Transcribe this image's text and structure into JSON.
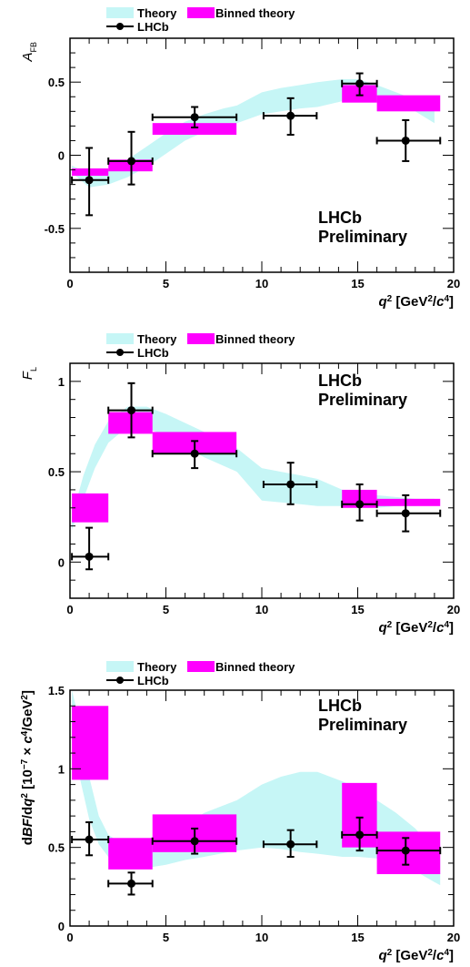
{
  "chart_data": [
    {
      "type": "line",
      "ylabel": "A",
      "ylabel_sub": "FB",
      "xlabel_parts": [
        "q",
        "2",
        " [GeV",
        "2",
        "/",
        "c",
        "4",
        "]"
      ],
      "legend": {
        "theory": "Theory",
        "binned": "Binned theory",
        "data": "LHCb"
      },
      "watermark": [
        "LHCb",
        "Preliminary"
      ],
      "xlim": [
        0,
        20
      ],
      "ylim": [
        -0.8,
        0.8
      ],
      "x_ticks": [
        0,
        5,
        10,
        15,
        20
      ],
      "x_tick_labels": [
        "0",
        "5",
        "10",
        "15",
        "20"
      ],
      "y_ticks": [
        -0.5,
        0,
        0.5
      ],
      "y_tick_labels": [
        "-0.5",
        "0",
        "0.5"
      ],
      "colors": {
        "theory": "#c6f6f6",
        "binned": "#ff00ff",
        "data": "#000000"
      },
      "theory_band": [
        {
          "x": 0.1,
          "lo": -0.12,
          "hi": -0.07
        },
        {
          "x": 1,
          "lo": -0.22,
          "hi": -0.13
        },
        {
          "x": 2,
          "lo": -0.2,
          "hi": -0.1
        },
        {
          "x": 3,
          "lo": -0.15,
          "hi": -0.03
        },
        {
          "x": 4,
          "lo": -0.08,
          "hi": 0.06
        },
        {
          "x": 5,
          "lo": 0.01,
          "hi": 0.15
        },
        {
          "x": 6,
          "lo": 0.1,
          "hi": 0.23
        },
        {
          "x": 7,
          "lo": 0.16,
          "hi": 0.28
        },
        {
          "x": 8,
          "lo": 0.2,
          "hi": 0.32
        },
        {
          "x": 8.7,
          "lo": 0.22,
          "hi": 0.34
        },
        {
          "x": 10,
          "lo": 0.28,
          "hi": 0.43
        },
        {
          "x": 11,
          "lo": 0.3,
          "hi": 0.46
        },
        {
          "x": 12,
          "lo": 0.32,
          "hi": 0.48
        },
        {
          "x": 12.9,
          "lo": 0.33,
          "hi": 0.5
        },
        {
          "x": 14.2,
          "lo": 0.37,
          "hi": 0.52
        },
        {
          "x": 15,
          "lo": 0.38,
          "hi": 0.52
        },
        {
          "x": 16,
          "lo": 0.37,
          "hi": 0.48
        },
        {
          "x": 17,
          "lo": 0.34,
          "hi": 0.43
        },
        {
          "x": 18,
          "lo": 0.3,
          "hi": 0.38
        },
        {
          "x": 19,
          "lo": 0.22,
          "hi": 0.3
        }
      ],
      "binned": [
        {
          "x0": 0.1,
          "x1": 2,
          "lo": -0.14,
          "hi": -0.09
        },
        {
          "x0": 2,
          "x1": 4.3,
          "lo": -0.11,
          "hi": -0.03
        },
        {
          "x0": 4.3,
          "x1": 8.68,
          "lo": 0.14,
          "hi": 0.22
        },
        {
          "x0": 14.18,
          "x1": 16,
          "lo": 0.36,
          "hi": 0.48
        },
        {
          "x0": 16,
          "x1": 19.3,
          "lo": 0.3,
          "hi": 0.41
        }
      ],
      "points": [
        {
          "x": 1.0,
          "xerr": [
            0.1,
            2
          ],
          "y": -0.17,
          "ylo": -0.41,
          "yhi": 0.05
        },
        {
          "x": 3.2,
          "xerr": [
            2,
            4.3
          ],
          "y": -0.04,
          "ylo": -0.2,
          "yhi": 0.16
        },
        {
          "x": 6.5,
          "xerr": [
            4.3,
            8.68
          ],
          "y": 0.26,
          "ylo": 0.19,
          "yhi": 0.33
        },
        {
          "x": 11.5,
          "xerr": [
            10.09,
            12.86
          ],
          "y": 0.27,
          "ylo": 0.14,
          "yhi": 0.39
        },
        {
          "x": 15.1,
          "xerr": [
            14.18,
            16
          ],
          "y": 0.49,
          "ylo": 0.41,
          "yhi": 0.56
        },
        {
          "x": 17.5,
          "xerr": [
            16,
            19.3
          ],
          "y": 0.1,
          "ylo": -0.04,
          "yhi": 0.24
        }
      ]
    },
    {
      "type": "line",
      "ylabel": "F",
      "ylabel_sub": "L",
      "xlabel_parts": [
        "q",
        "2",
        " [GeV",
        "2",
        "/",
        "c",
        "4",
        "]"
      ],
      "legend": {
        "theory": "Theory",
        "binned": "Binned theory",
        "data": "LHCb"
      },
      "watermark": [
        "LHCb",
        "Preliminary"
      ],
      "xlim": [
        0,
        20
      ],
      "ylim": [
        -0.2,
        1.1
      ],
      "x_ticks": [
        0,
        5,
        10,
        15,
        20
      ],
      "x_tick_labels": [
        "0",
        "5",
        "10",
        "15",
        "20"
      ],
      "y_ticks": [
        0,
        0.5,
        1
      ],
      "y_tick_labels": [
        "0",
        "0.5",
        "1"
      ],
      "colors": {
        "theory": "#c6f6f6",
        "binned": "#ff00ff",
        "data": "#000000"
      },
      "theory_band": [
        {
          "x": 0.1,
          "lo": 0.18,
          "hi": 0.25
        },
        {
          "x": 0.7,
          "lo": 0.35,
          "hi": 0.48
        },
        {
          "x": 1.3,
          "lo": 0.52,
          "hi": 0.65
        },
        {
          "x": 2,
          "lo": 0.66,
          "hi": 0.78
        },
        {
          "x": 3,
          "lo": 0.75,
          "hi": 0.86
        },
        {
          "x": 4,
          "lo": 0.74,
          "hi": 0.86
        },
        {
          "x": 5,
          "lo": 0.7,
          "hi": 0.82
        },
        {
          "x": 6,
          "lo": 0.64,
          "hi": 0.77
        },
        {
          "x": 7,
          "lo": 0.58,
          "hi": 0.72
        },
        {
          "x": 8.7,
          "lo": 0.5,
          "hi": 0.63
        },
        {
          "x": 10,
          "lo": 0.34,
          "hi": 0.52
        },
        {
          "x": 11,
          "lo": 0.33,
          "hi": 0.5
        },
        {
          "x": 12,
          "lo": 0.32,
          "hi": 0.48
        },
        {
          "x": 12.9,
          "lo": 0.31,
          "hi": 0.46
        },
        {
          "x": 14.2,
          "lo": 0.31,
          "hi": 0.4
        },
        {
          "x": 15,
          "lo": 0.3,
          "hi": 0.38
        },
        {
          "x": 16,
          "lo": 0.3,
          "hi": 0.37
        },
        {
          "x": 17,
          "lo": 0.31,
          "hi": 0.36
        },
        {
          "x": 18,
          "lo": 0.31,
          "hi": 0.35
        },
        {
          "x": 19,
          "lo": 0.32,
          "hi": 0.35
        }
      ],
      "binned": [
        {
          "x0": 0.1,
          "x1": 2,
          "lo": 0.22,
          "hi": 0.38
        },
        {
          "x0": 2,
          "x1": 4.3,
          "lo": 0.71,
          "hi": 0.83
        },
        {
          "x0": 4.3,
          "x1": 8.68,
          "lo": 0.6,
          "hi": 0.72
        },
        {
          "x0": 14.18,
          "x1": 16,
          "lo": 0.3,
          "hi": 0.4
        },
        {
          "x0": 16,
          "x1": 19.3,
          "lo": 0.31,
          "hi": 0.35
        }
      ],
      "points": [
        {
          "x": 1.0,
          "xerr": [
            0.1,
            2
          ],
          "y": 0.03,
          "ylo": -0.04,
          "yhi": 0.19
        },
        {
          "x": 3.2,
          "xerr": [
            2,
            4.3
          ],
          "y": 0.84,
          "ylo": 0.69,
          "yhi": 0.99
        },
        {
          "x": 6.5,
          "xerr": [
            4.3,
            8.68
          ],
          "y": 0.6,
          "ylo": 0.52,
          "yhi": 0.67
        },
        {
          "x": 11.5,
          "xerr": [
            10.09,
            12.86
          ],
          "y": 0.43,
          "ylo": 0.32,
          "yhi": 0.55
        },
        {
          "x": 15.1,
          "xerr": [
            14.18,
            16
          ],
          "y": 0.32,
          "ylo": 0.23,
          "yhi": 0.43
        },
        {
          "x": 17.5,
          "xerr": [
            16,
            19.3
          ],
          "y": 0.27,
          "ylo": 0.17,
          "yhi": 0.37
        }
      ]
    },
    {
      "type": "line",
      "ylabel_parts": [
        "d",
        "B",
        "F",
        "/d",
        "q",
        "2",
        " [10",
        "−7",
        " × ",
        "c",
        "4",
        "/GeV",
        "2",
        "]"
      ],
      "xlabel_parts": [
        "q",
        "2",
        " [GeV",
        "2",
        "/",
        "c",
        "4",
        "]"
      ],
      "legend": {
        "theory": "Theory",
        "binned": "Binned theory",
        "data": "LHCb"
      },
      "watermark": [
        "LHCb",
        "Preliminary"
      ],
      "xlim": [
        0,
        20
      ],
      "ylim": [
        0,
        1.5
      ],
      "x_ticks": [
        0,
        5,
        10,
        15,
        20
      ],
      "x_tick_labels": [
        "0",
        "5",
        "10",
        "15",
        "20"
      ],
      "y_ticks": [
        0,
        0.5,
        1,
        1.5
      ],
      "y_tick_labels": [
        "0",
        "0.5",
        "1",
        "1.5"
      ],
      "colors": {
        "theory": "#c6f6f6",
        "binned": "#ff00ff",
        "data": "#000000"
      },
      "theory_band": [
        {
          "x": 0.1,
          "lo": 1.3,
          "hi": 1.5
        },
        {
          "x": 0.5,
          "lo": 0.95,
          "hi": 1.3
        },
        {
          "x": 1,
          "lo": 0.68,
          "hi": 0.95
        },
        {
          "x": 1.5,
          "lo": 0.52,
          "hi": 0.7
        },
        {
          "x": 2,
          "lo": 0.44,
          "hi": 0.58
        },
        {
          "x": 3,
          "lo": 0.37,
          "hi": 0.5
        },
        {
          "x": 4,
          "lo": 0.37,
          "hi": 0.52
        },
        {
          "x": 5,
          "lo": 0.39,
          "hi": 0.58
        },
        {
          "x": 6,
          "lo": 0.42,
          "hi": 0.64
        },
        {
          "x": 7,
          "lo": 0.44,
          "hi": 0.72
        },
        {
          "x": 8.7,
          "lo": 0.48,
          "hi": 0.8
        },
        {
          "x": 10,
          "lo": 0.5,
          "hi": 0.9
        },
        {
          "x": 11,
          "lo": 0.49,
          "hi": 0.95
        },
        {
          "x": 12,
          "lo": 0.47,
          "hi": 0.98
        },
        {
          "x": 12.9,
          "lo": 0.46,
          "hi": 0.98
        },
        {
          "x": 14.2,
          "lo": 0.44,
          "hi": 0.92
        },
        {
          "x": 15,
          "lo": 0.44,
          "hi": 0.88
        },
        {
          "x": 16,
          "lo": 0.43,
          "hi": 0.8
        },
        {
          "x": 17,
          "lo": 0.4,
          "hi": 0.72
        },
        {
          "x": 18,
          "lo": 0.35,
          "hi": 0.62
        },
        {
          "x": 19,
          "lo": 0.28,
          "hi": 0.48
        },
        {
          "x": 19.3,
          "lo": 0.26,
          "hi": 0.42
        }
      ],
      "binned": [
        {
          "x0": 0.1,
          "x1": 2,
          "lo": 0.93,
          "hi": 1.4
        },
        {
          "x0": 2,
          "x1": 4.3,
          "lo": 0.36,
          "hi": 0.56
        },
        {
          "x0": 4.3,
          "x1": 8.68,
          "lo": 0.47,
          "hi": 0.71
        },
        {
          "x0": 14.18,
          "x1": 16,
          "lo": 0.5,
          "hi": 0.91
        },
        {
          "x0": 16,
          "x1": 19.3,
          "lo": 0.33,
          "hi": 0.6
        }
      ],
      "points": [
        {
          "x": 1.0,
          "xerr": [
            0.1,
            2
          ],
          "y": 0.55,
          "ylo": 0.45,
          "yhi": 0.66
        },
        {
          "x": 3.2,
          "xerr": [
            2,
            4.3
          ],
          "y": 0.27,
          "ylo": 0.2,
          "yhi": 0.34
        },
        {
          "x": 6.5,
          "xerr": [
            4.3,
            8.68
          ],
          "y": 0.54,
          "ylo": 0.46,
          "yhi": 0.62
        },
        {
          "x": 11.5,
          "xerr": [
            10.09,
            12.86
          ],
          "y": 0.52,
          "ylo": 0.44,
          "yhi": 0.61
        },
        {
          "x": 15.1,
          "xerr": [
            14.18,
            16
          ],
          "y": 0.58,
          "ylo": 0.48,
          "yhi": 0.69
        },
        {
          "x": 17.5,
          "xerr": [
            16,
            19.3
          ],
          "y": 0.48,
          "ylo": 0.39,
          "yhi": 0.56
        }
      ]
    }
  ]
}
